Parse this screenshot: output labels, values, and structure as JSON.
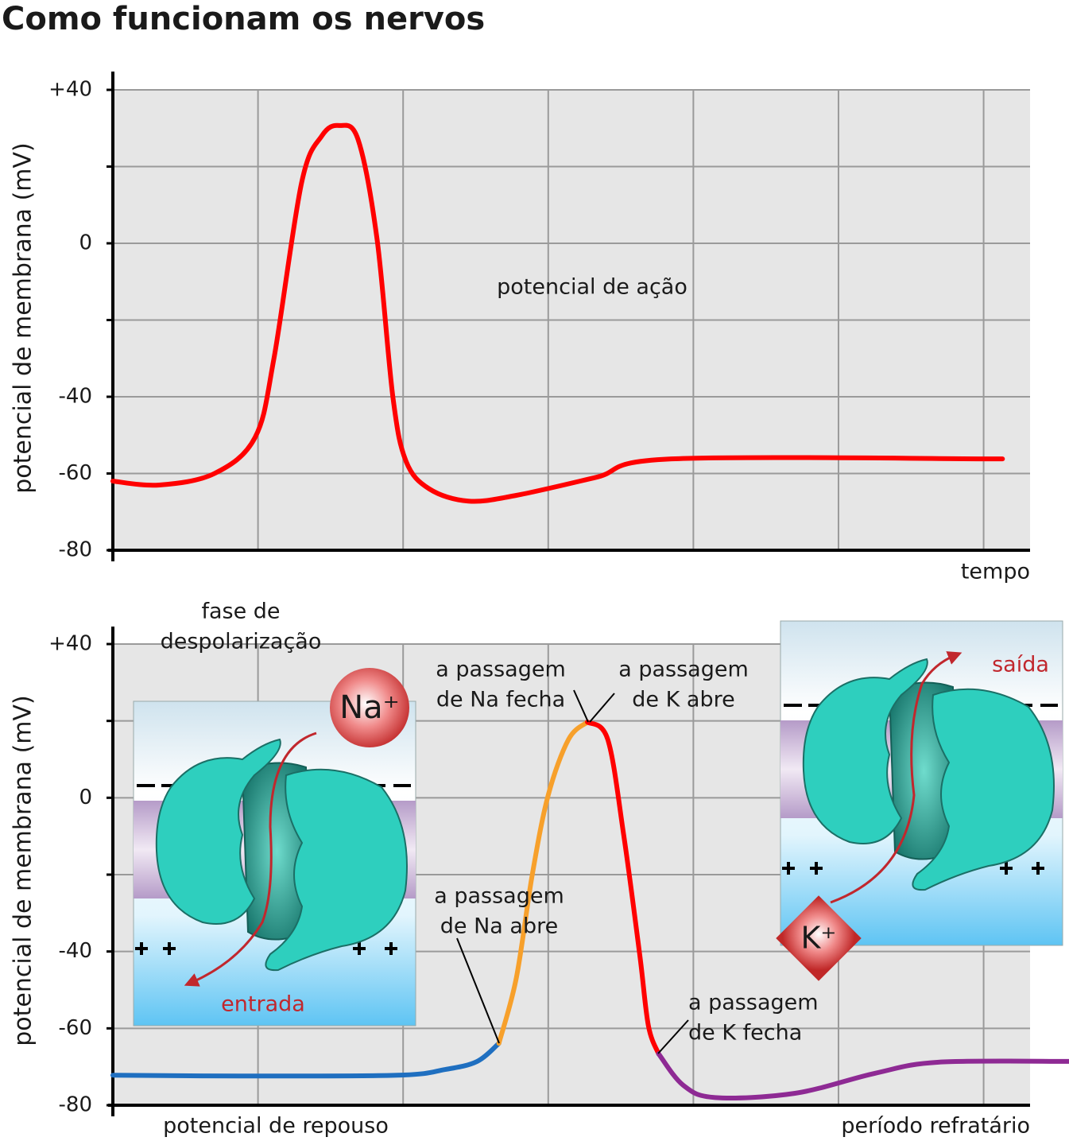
{
  "title": "Como funcionam os nervos",
  "chart_data": [
    {
      "type": "line",
      "y_label": "potencial de membrana (mV)",
      "x_label": "tempo",
      "ylim": [
        -80,
        40
      ],
      "yticks": [
        {
          "value": 40,
          "label": "+40"
        },
        {
          "value": 20,
          "label": null
        },
        0,
        {
          "value": -20,
          "label": null
        },
        -40,
        -60,
        -80
      ],
      "xlim": [
        0,
        6.32
      ],
      "xticks": [
        {
          "value": 1,
          "label": null
        },
        {
          "value": 2,
          "label": null
        },
        {
          "value": 3,
          "label": null
        },
        {
          "value": 4,
          "label": null
        },
        {
          "value": 5,
          "label": null
        },
        {
          "value": 6,
          "label": null
        }
      ],
      "grid": true,
      "series": [
        {
          "color": "#ff0000",
          "x": [
            0,
            0.32,
            0.7,
            0.98,
            1.11,
            1.3,
            1.44,
            1.56,
            1.69,
            1.82,
            1.93,
            2.02,
            2.18,
            2.45,
            2.78,
            3.33,
            3.85,
            6.13
          ],
          "values": [
            -62,
            -63,
            -60,
            -50.6,
            -30,
            15.7,
            28,
            30.7,
            27,
            1.2,
            -40.2,
            -56.8,
            -64,
            -67.2,
            -65.7,
            -61,
            -56.2,
            -56.2
          ]
        }
      ],
      "annotations": [
        {
          "lines": [
            "potencial de ação"
          ]
        }
      ]
    },
    {
      "type": "line",
      "y_label": "potencial de membrana (mV)",
      "ylim": [
        -80,
        40
      ],
      "yticks": [
        {
          "value": 40,
          "label": "+40"
        },
        {
          "value": 20,
          "label": null
        },
        0,
        {
          "value": -20,
          "label": null
        },
        -40,
        -60,
        -80
      ],
      "xlim": [
        0,
        6.32
      ],
      "xticks": [
        {
          "value": 1,
          "label": null
        },
        {
          "value": 2,
          "label": null
        },
        {
          "value": 3,
          "label": null
        },
        {
          "value": 4,
          "label": null
        },
        {
          "value": 5,
          "label": null
        },
        {
          "value": 6,
          "label": null
        }
      ],
      "grid": true,
      "series": [
        {
          "color": "#1f6fc0",
          "x": [
            0,
            0.87,
            1.96,
            2.29,
            2.51,
            2.66
          ],
          "values": [
            -72.2,
            -72.4,
            -72.2,
            -70.7,
            -68.6,
            -63.9
          ]
        },
        {
          "color": "#f7a02b",
          "x": [
            2.66,
            2.78,
            2.89,
            3.0,
            3.14,
            3.27
          ],
          "values": [
            -63.9,
            -46.9,
            -20,
            0.7,
            15.2,
            19.7
          ]
        },
        {
          "color": "#ff0000",
          "x": [
            3.27,
            3.41,
            3.52,
            3.63,
            3.69,
            3.76
          ],
          "values": [
            19.7,
            15.2,
            -9.7,
            -40.7,
            -59.3,
            -66.6
          ]
        },
        {
          "color": "#8e2a94",
          "x": [
            3.76,
            3.93,
            4.15,
            4.7,
            5.25,
            5.69,
            6.59
          ],
          "values": [
            -66.6,
            -74.8,
            -78,
            -76.9,
            -71.7,
            -68.8,
            -68.6
          ]
        }
      ],
      "annotations": [
        {
          "lines": [
            "fase de",
            "despolarização"
          ]
        },
        {
          "lines": [
            "a passagem",
            "de Na fecha"
          ]
        },
        {
          "lines": [
            "a passagem",
            "de K abre"
          ]
        },
        {
          "lines": [
            "a passagem",
            "de Na abre"
          ]
        },
        {
          "lines": [
            "a passagem",
            "de K fecha"
          ]
        },
        {
          "lines": [
            "potencial de repouso"
          ]
        },
        {
          "lines": [
            "período refratário"
          ]
        },
        {
          "lines": [
            "entrada"
          ]
        },
        {
          "lines": [
            "saída"
          ]
        },
        {
          "lines": [
            "Na⁺"
          ]
        },
        {
          "lines": [
            "K⁺"
          ]
        }
      ]
    }
  ]
}
